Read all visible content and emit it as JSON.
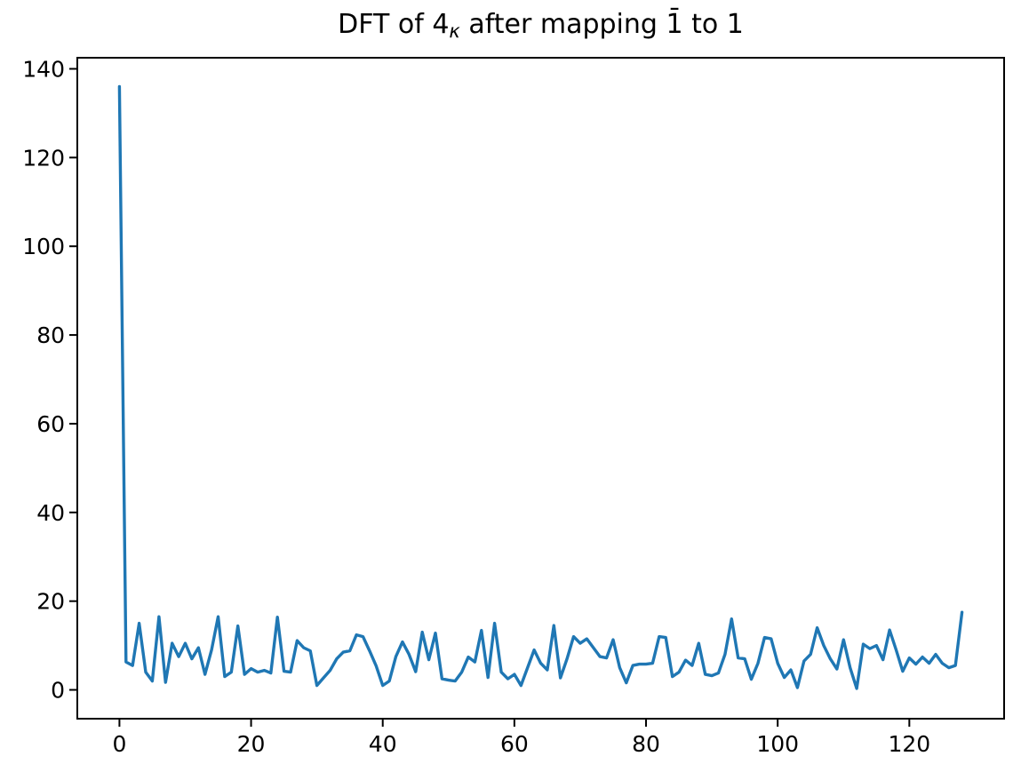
{
  "figure": {
    "background": "#ffffff"
  },
  "chart_data": {
    "type": "line",
    "title": "DFT of 4κ after mapping 1̄ to 1",
    "title_parts": {
      "prefix": "DFT of 4",
      "subscript": "κ",
      "suffix": " after mapping 1̄ to 1"
    },
    "xlabel": "",
    "ylabel": "",
    "x_ticks": [
      0,
      20,
      40,
      60,
      80,
      100,
      120
    ],
    "y_ticks": [
      0,
      20,
      40,
      60,
      80,
      100,
      120,
      140
    ],
    "xlim": [
      -6.4,
      134.4
    ],
    "ylim": [
      -6.5,
      142.5
    ],
    "grid": false,
    "legend": "none",
    "line_color": "#1f77b4",
    "axis_color": "#000000",
    "x": [
      0,
      1,
      2,
      3,
      4,
      5,
      6,
      7,
      8,
      9,
      10,
      11,
      12,
      13,
      14,
      15,
      16,
      17,
      18,
      19,
      20,
      21,
      22,
      23,
      24,
      25,
      26,
      27,
      28,
      29,
      30,
      31,
      32,
      33,
      34,
      35,
      36,
      37,
      38,
      39,
      40,
      41,
      42,
      43,
      44,
      45,
      46,
      47,
      48,
      49,
      50,
      51,
      52,
      53,
      54,
      55,
      56,
      57,
      58,
      59,
      60,
      61,
      62,
      63,
      64,
      65,
      66,
      67,
      68,
      69,
      70,
      71,
      72,
      73,
      74,
      75,
      76,
      77,
      78,
      79,
      80,
      81,
      82,
      83,
      84,
      85,
      86,
      87,
      88,
      89,
      90,
      91,
      92,
      93,
      94,
      95,
      96,
      97,
      98,
      99,
      100,
      101,
      102,
      103,
      104,
      105,
      106,
      107,
      108,
      109,
      110,
      111,
      112,
      113,
      114,
      115,
      116,
      117,
      118,
      119,
      120,
      121,
      122,
      123,
      124,
      125,
      126,
      127,
      128
    ],
    "values": [
      136,
      6.3,
      5.5,
      15,
      4,
      2,
      16.5,
      1.7,
      10.5,
      7.5,
      10.5,
      7,
      9.5,
      3.5,
      9,
      16.5,
      3,
      4,
      14.4,
      3.5,
      4.8,
      4.0,
      4.4,
      3.8,
      16.4,
      4.2,
      4.0,
      11.1,
      9.5,
      8.8,
      1.0,
      2.7,
      4.4,
      7,
      8.5,
      8.8,
      12.4,
      12.0,
      8.8,
      5.4,
      1.0,
      2.0,
      7.5,
      10.8,
      8,
      4.1,
      13,
      6.8,
      12.8,
      2.5,
      2.2,
      2.0,
      4,
      7.4,
      6.3,
      13.4,
      2.8,
      15,
      4,
      2.5,
      3.5,
      1,
      5,
      9,
      6,
      4.5,
      14.5,
      2.7,
      7,
      12,
      10.5,
      11.5,
      9.5,
      7.5,
      7.2,
      11.3,
      5,
      1.6,
      5.5,
      5.8,
      5.8,
      6,
      12,
      11.8,
      3,
      4,
      6.7,
      5.5,
      10.5,
      3.5,
      3.2,
      3.8,
      8,
      16,
      7.2,
      7,
      2.4,
      6,
      11.8,
      11.5,
      6,
      2.8,
      4.5,
      0.5,
      6.5,
      8,
      14,
      10,
      7,
      4.7,
      11.3,
      5,
      0.3,
      10.3,
      9.3,
      10,
      6.8,
      13.5,
      9,
      4.2,
      7.2,
      5.8,
      7.4,
      6,
      8,
      6,
      5,
      5.5,
      17.5
    ]
  }
}
